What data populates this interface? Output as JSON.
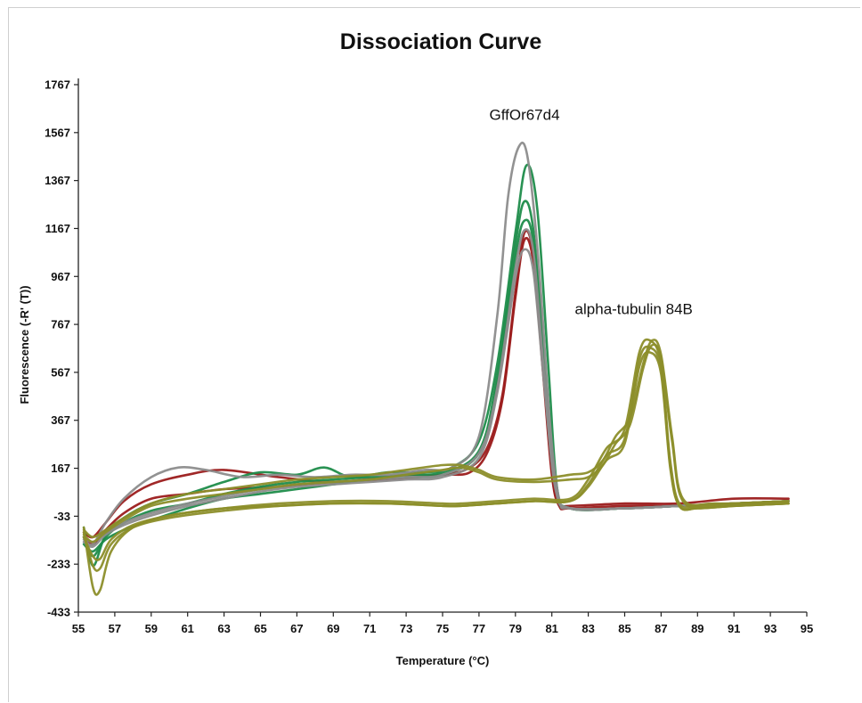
{
  "chart_data": {
    "type": "line",
    "title": "Dissociation Curve",
    "xlabel": "Temperature (°C)",
    "ylabel": "Fluorescence (-R' (T))",
    "xlim": [
      55,
      95
    ],
    "ylim": [
      -433,
      1767
    ],
    "xticks": [
      55,
      57,
      59,
      61,
      63,
      65,
      67,
      69,
      71,
      73,
      75,
      77,
      79,
      81,
      83,
      85,
      87,
      89,
      91,
      93,
      95
    ],
    "yticks": [
      -433,
      -233,
      -33,
      167,
      367,
      567,
      767,
      967,
      1167,
      1367,
      1567,
      1767
    ],
    "annotations": [
      {
        "text": "GffOr67d4",
        "x": 79.5,
        "y": 1620
      },
      {
        "text": "alpha-tubulin 84B",
        "x": 85.5,
        "y": 810
      }
    ],
    "grid": false,
    "series": [
      {
        "color": "#9b1b1b",
        "x": [
          55.3,
          55.8,
          56.5,
          57.5,
          59,
          61,
          63,
          66,
          69,
          72,
          75,
          76.5,
          77.5,
          78.3,
          79,
          79.5,
          80,
          80.5,
          81,
          81.4,
          82,
          85,
          88,
          91,
          94
        ],
        "y": [
          -120,
          -150,
          -90,
          -20,
          40,
          60,
          80,
          90,
          110,
          120,
          140,
          170,
          260,
          480,
          900,
          1150,
          1050,
          600,
          150,
          20,
          10,
          20,
          20,
          40,
          40
        ]
      },
      {
        "color": "#9b1b1b",
        "x": [
          55.3,
          55.8,
          56.5,
          57.5,
          59,
          61,
          63,
          66,
          69,
          72,
          75,
          76.5,
          77.5,
          78.3,
          79,
          79.5,
          80,
          80.5,
          81,
          81.4,
          82,
          85,
          88,
          91,
          94
        ],
        "y": [
          -100,
          -120,
          -60,
          30,
          100,
          140,
          160,
          130,
          110,
          130,
          140,
          150,
          240,
          460,
          880,
          1120,
          1020,
          580,
          140,
          10,
          0,
          10,
          10,
          20,
          30
        ]
      },
      {
        "color": "#1e8c4a",
        "x": [
          55.3,
          55.8,
          56.5,
          57.5,
          59,
          61,
          63,
          65,
          67,
          68.5,
          70,
          72,
          74,
          75.5,
          77,
          78,
          79,
          79.6,
          80.2,
          80.8,
          81.3,
          82,
          85,
          88,
          91,
          94
        ],
        "y": [
          -80,
          -240,
          -110,
          -40,
          20,
          60,
          110,
          150,
          140,
          170,
          130,
          150,
          150,
          170,
          280,
          600,
          1150,
          1430,
          1250,
          600,
          80,
          0,
          0,
          10,
          20,
          30
        ]
      },
      {
        "color": "#1e8c4a",
        "x": [
          55.3,
          55.8,
          56.5,
          57.5,
          59,
          61,
          63,
          65,
          67,
          69,
          71,
          73,
          75,
          77,
          78,
          79,
          79.5,
          80,
          80.6,
          81.2,
          82,
          85,
          88,
          91,
          94
        ],
        "y": [
          -120,
          -200,
          -120,
          -60,
          -10,
          20,
          60,
          90,
          110,
          120,
          130,
          140,
          150,
          240,
          550,
          1100,
          1280,
          1150,
          600,
          100,
          0,
          0,
          10,
          20,
          30
        ]
      },
      {
        "color": "#1e8c4a",
        "x": [
          55.3,
          55.8,
          56.5,
          57.5,
          59,
          61,
          63,
          65,
          67,
          69,
          71,
          73,
          75,
          77,
          78,
          79,
          79.5,
          80,
          80.6,
          81.2,
          82,
          85,
          88,
          91,
          94
        ],
        "y": [
          -150,
          -180,
          -130,
          -90,
          -50,
          0,
          40,
          60,
          80,
          100,
          120,
          130,
          140,
          230,
          520,
          1050,
          1200,
          1100,
          560,
          90,
          0,
          0,
          10,
          20,
          30
        ]
      },
      {
        "color": "#8c8c8c",
        "x": [
          55.3,
          55.8,
          56.5,
          57.5,
          59,
          60.5,
          62,
          64,
          66,
          68,
          70,
          72,
          74,
          75.5,
          77,
          78,
          78.6,
          79.2,
          79.7,
          80.3,
          80.9,
          81.4,
          82,
          85,
          88,
          91,
          94
        ],
        "y": [
          -130,
          -150,
          -60,
          40,
          130,
          170,
          160,
          130,
          140,
          130,
          140,
          140,
          160,
          170,
          300,
          800,
          1300,
          1510,
          1450,
          1000,
          350,
          40,
          0,
          0,
          10,
          20,
          30
        ]
      },
      {
        "color": "#8c8c8c",
        "x": [
          55.3,
          55.8,
          56.5,
          57.5,
          59,
          61,
          63,
          65,
          67,
          69,
          71,
          73,
          75,
          77,
          78,
          79,
          79.5,
          80,
          80.6,
          81.2,
          82,
          85,
          88,
          91,
          94
        ],
        "y": [
          -120,
          -140,
          -100,
          -60,
          -20,
          20,
          50,
          80,
          100,
          110,
          120,
          130,
          140,
          230,
          500,
          1000,
          1160,
          1060,
          540,
          90,
          0,
          0,
          10,
          20,
          30
        ]
      },
      {
        "color": "#8c8c8c",
        "x": [
          55.3,
          55.8,
          56.5,
          57.5,
          59,
          61,
          63,
          65,
          67,
          69,
          71,
          73,
          75,
          77,
          78,
          79,
          79.5,
          80,
          80.6,
          81.2,
          82,
          85,
          88,
          91,
          94
        ],
        "y": [
          -140,
          -160,
          -110,
          -70,
          -30,
          10,
          40,
          70,
          90,
          100,
          110,
          120,
          130,
          210,
          480,
          960,
          1080,
          980,
          500,
          80,
          0,
          0,
          10,
          20,
          30
        ]
      },
      {
        "color": "#8c8e2a",
        "x": [
          55.3,
          55.8,
          56.2,
          56.8,
          58,
          60,
          63,
          66,
          69,
          72,
          75,
          76,
          78,
          80,
          82,
          83,
          84,
          85,
          85.8,
          86.4,
          87,
          87.5,
          88,
          89,
          91,
          94
        ],
        "y": [
          -80,
          -330,
          -340,
          -180,
          -80,
          -30,
          0,
          20,
          30,
          30,
          20,
          20,
          30,
          40,
          40,
          120,
          250,
          330,
          650,
          700,
          600,
          200,
          20,
          10,
          20,
          30
        ]
      },
      {
        "color": "#8c8e2a",
        "x": [
          55.3,
          55.8,
          56.2,
          56.8,
          58,
          60,
          63,
          66,
          69,
          72,
          75,
          76,
          78,
          80,
          82,
          83,
          84,
          85,
          85.8,
          86.4,
          87,
          87.5,
          88,
          89,
          91,
          94
        ],
        "y": [
          -100,
          -240,
          -250,
          -150,
          -80,
          -40,
          -10,
          10,
          20,
          20,
          10,
          10,
          20,
          30,
          30,
          100,
          220,
          290,
          620,
          670,
          580,
          180,
          10,
          0,
          10,
          20
        ]
      },
      {
        "color": "#8c8e2a",
        "x": [
          55.3,
          55.8,
          56.2,
          56.8,
          58,
          60,
          63,
          66,
          69,
          72,
          75,
          76,
          78,
          80,
          82,
          83,
          84,
          85,
          85.8,
          86.4,
          87,
          87.5,
          88,
          89,
          91,
          94
        ],
        "y": [
          -120,
          -200,
          -210,
          -130,
          -70,
          -30,
          0,
          10,
          20,
          20,
          10,
          10,
          20,
          30,
          30,
          90,
          200,
          270,
          590,
          650,
          560,
          170,
          10,
          0,
          10,
          20
        ]
      },
      {
        "color": "#8c8e2a",
        "x": [
          55.3,
          55.8,
          56.5,
          57.5,
          59,
          61,
          63,
          65,
          67,
          69,
          71,
          73,
          75,
          76,
          77,
          78,
          80,
          82,
          83,
          83.8,
          84.5,
          85.3,
          86,
          86.5,
          87,
          87.6,
          88.2,
          90,
          94
        ],
        "y": [
          -90,
          -120,
          -90,
          -40,
          20,
          60,
          80,
          100,
          120,
          130,
          140,
          160,
          180,
          180,
          160,
          130,
          120,
          140,
          150,
          200,
          300,
          380,
          600,
          700,
          640,
          300,
          40,
          20,
          30
        ]
      },
      {
        "color": "#8c8e2a",
        "x": [
          55.3,
          55.8,
          56.5,
          57.5,
          59,
          61,
          63,
          65,
          67,
          69,
          71,
          73,
          75,
          76,
          77,
          78,
          80,
          82,
          83,
          83.8,
          84.5,
          85.3,
          86,
          86.5,
          87,
          87.6,
          88.2,
          90,
          94
        ],
        "y": [
          -110,
          -140,
          -100,
          -50,
          10,
          40,
          60,
          80,
          100,
          110,
          120,
          140,
          160,
          170,
          150,
          120,
          110,
          120,
          130,
          180,
          270,
          350,
          580,
          680,
          620,
          280,
          30,
          10,
          20
        ]
      }
    ]
  }
}
